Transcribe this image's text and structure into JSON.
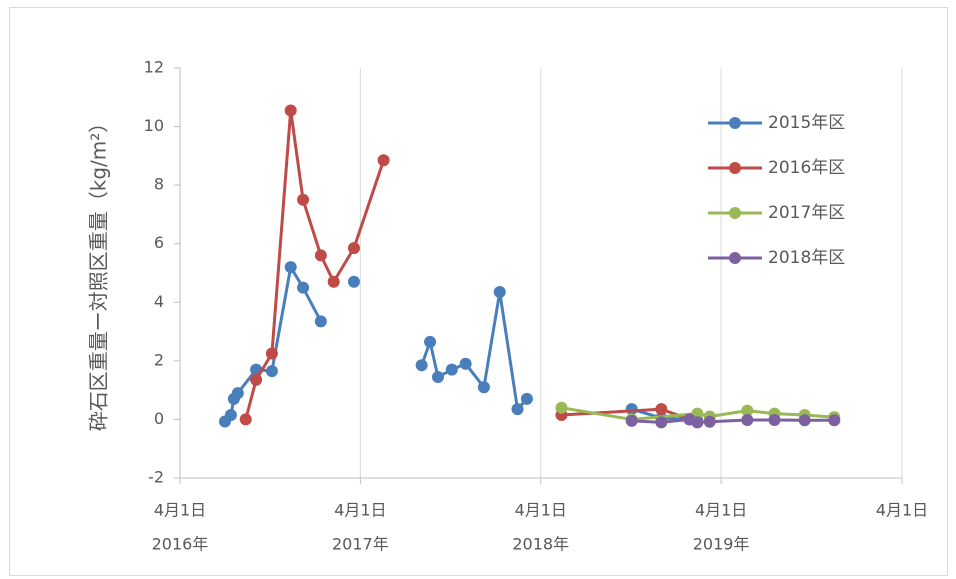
{
  "chart_data": {
    "type": "line",
    "y_label": "砕石区重量ー対照区重量（kg/m²）",
    "xlim": [
      "2016-04-01",
      "2020-04-01"
    ],
    "xticks": [
      {
        "value": "2016-04-01",
        "label": [
          "4月1日",
          "2016年"
        ]
      },
      {
        "value": "2017-04-01",
        "label": [
          "4月1日",
          "2017年"
        ]
      },
      {
        "value": "2018-04-01",
        "label": [
          "4月1日",
          "2018年"
        ]
      },
      {
        "value": "2019-04-01",
        "label": [
          "4月1日",
          "2019年"
        ]
      },
      {
        "value": "2020-04-01",
        "label": [
          "4月1日"
        ]
      }
    ],
    "ylim": [
      -2,
      12
    ],
    "yticks": [
      -2,
      0,
      2,
      4,
      6,
      8,
      10,
      12
    ],
    "grid": "x",
    "legend": "right",
    "series": [
      {
        "name": "2015年区",
        "color": "#4a7ebb",
        "x": [
          "2016-07-01",
          "2016-07-13",
          "2016-07-19",
          "2016-07-27",
          "2016-09-02",
          "2016-10-04",
          "2016-11-11",
          "2016-12-06",
          "2017-01-11",
          null,
          "2017-03-19",
          null,
          "2017-08-03",
          "2017-08-20",
          "2017-09-05",
          "2017-10-03",
          "2017-10-31",
          "2017-12-07",
          "2018-01-08",
          "2018-02-13",
          "2018-03-04",
          null,
          "2018-10-02",
          "2018-12-01",
          "2019-01-27",
          "2019-02-12"
        ],
        "values": [
          -0.07,
          0.15,
          0.7,
          0.9,
          1.7,
          1.65,
          5.2,
          4.5,
          3.35,
          null,
          4.7,
          null,
          1.85,
          2.65,
          1.45,
          1.7,
          1.9,
          1.1,
          4.35,
          0.35,
          0.7,
          null,
          0.35,
          0.05,
          0.0,
          -0.05
        ]
      },
      {
        "name": "2016年区",
        "color": "#be4b48",
        "x": [
          "2016-08-12",
          "2016-09-02",
          "2016-10-04",
          "2016-11-11",
          "2016-12-06",
          "2017-01-11",
          "2017-02-06",
          "2017-03-19",
          "2017-05-18",
          null,
          "2018-05-13",
          "2018-12-01",
          "2019-01-27"
        ],
        "values": [
          0.0,
          1.35,
          2.25,
          10.55,
          7.5,
          5.6,
          4.7,
          5.85,
          8.85,
          null,
          0.15,
          0.35,
          0.0
        ]
      },
      {
        "name": "2017年区",
        "color": "#98b954",
        "x": [
          "2018-05-13",
          "2018-10-02",
          "2019-02-12",
          "2019-03-09",
          "2019-05-24",
          "2019-07-18",
          "2019-09-17",
          "2019-11-16"
        ],
        "values": [
          0.4,
          0.0,
          0.2,
          0.1,
          0.3,
          0.2,
          0.15,
          0.08
        ]
      },
      {
        "name": "2018年区",
        "color": "#7d60a0",
        "x": [
          "2018-10-02",
          "2018-12-01",
          "2019-01-27",
          "2019-02-12",
          "2019-03-09",
          "2019-05-24",
          "2019-07-18",
          "2019-09-17",
          "2019-11-16"
        ],
        "values": [
          -0.05,
          -0.1,
          0.0,
          -0.1,
          -0.08,
          -0.02,
          -0.02,
          -0.03,
          -0.03
        ]
      }
    ]
  }
}
